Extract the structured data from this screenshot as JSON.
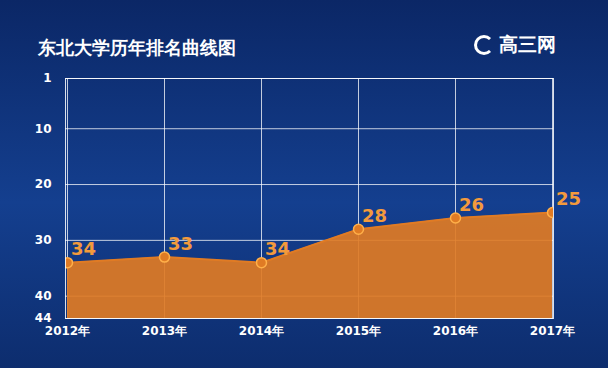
{
  "chart_data": {
    "type": "area",
    "title": "东北大学历年排名曲线图",
    "logo_text": "高三网",
    "categories": [
      "2012年",
      "2013年",
      "2014年",
      "2015年",
      "2016年",
      "2017年"
    ],
    "values": [
      34,
      33,
      34,
      28,
      26,
      25
    ],
    "color": "#e07b24",
    "ylim": [
      44,
      1
    ],
    "yticks": [
      1,
      10,
      20,
      30,
      40,
      44
    ],
    "grid": true,
    "data_labels": true
  }
}
